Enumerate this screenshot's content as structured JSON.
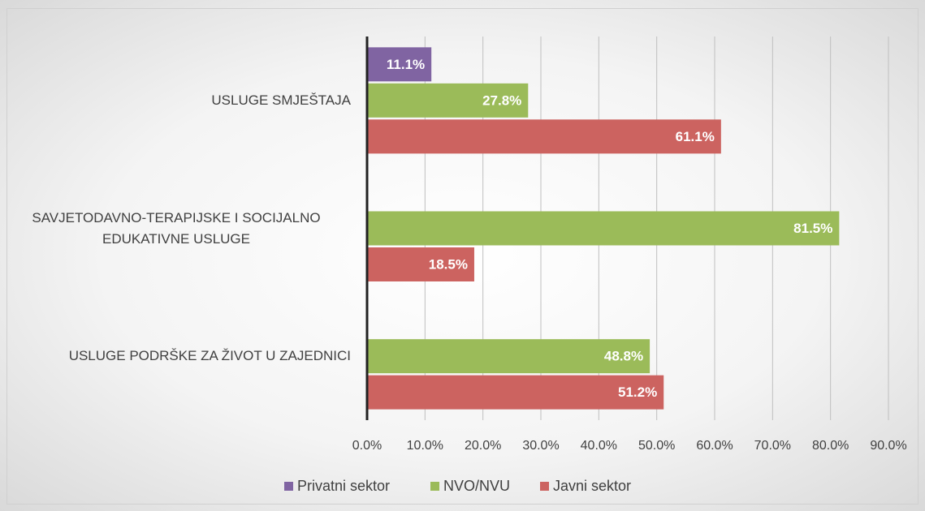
{
  "chart_data": {
    "type": "bar",
    "orientation": "horizontal",
    "categories": [
      "USLUGE SMJEŠTAJA",
      "SAVJETODAVNO-TERAPIJSKE I SOCIJALNO EDUKATIVNE USLUGE",
      "USLUGE PODRŠKE ZA ŽIVOT U ZAJEDNICI"
    ],
    "series": [
      {
        "name": "Privatni sektor",
        "color": "#8064a2",
        "values": [
          11.1,
          null,
          null
        ],
        "value_labels": [
          "11.1%",
          null,
          null
        ]
      },
      {
        "name": "NVO/NVU",
        "color": "#9bbb59",
        "values": [
          27.8,
          81.5,
          48.8
        ],
        "value_labels": [
          "27.8%",
          "81.5%",
          "48.8%"
        ]
      },
      {
        "name": "Javni sektor",
        "color": "#cc6360",
        "values": [
          61.1,
          18.5,
          51.2
        ],
        "value_labels": [
          "61.1%",
          "18.5%",
          "51.2%"
        ]
      }
    ],
    "xlim": [
      0,
      90
    ],
    "xticks": [
      {
        "value": 0,
        "label": "0.0%"
      },
      {
        "value": 10,
        "label": "10.0%"
      },
      {
        "value": 20,
        "label": "20.0%"
      },
      {
        "value": 30,
        "label": "30.0%"
      },
      {
        "value": 40,
        "label": "40.0%"
      },
      {
        "value": 50,
        "label": "50.0%"
      },
      {
        "value": 60,
        "label": "60.0%"
      },
      {
        "value": 70,
        "label": "70.0%"
      },
      {
        "value": 80,
        "label": "80.0%"
      },
      {
        "value": 90,
        "label": "90.0%"
      }
    ],
    "grid": true,
    "legend": "bottom"
  }
}
